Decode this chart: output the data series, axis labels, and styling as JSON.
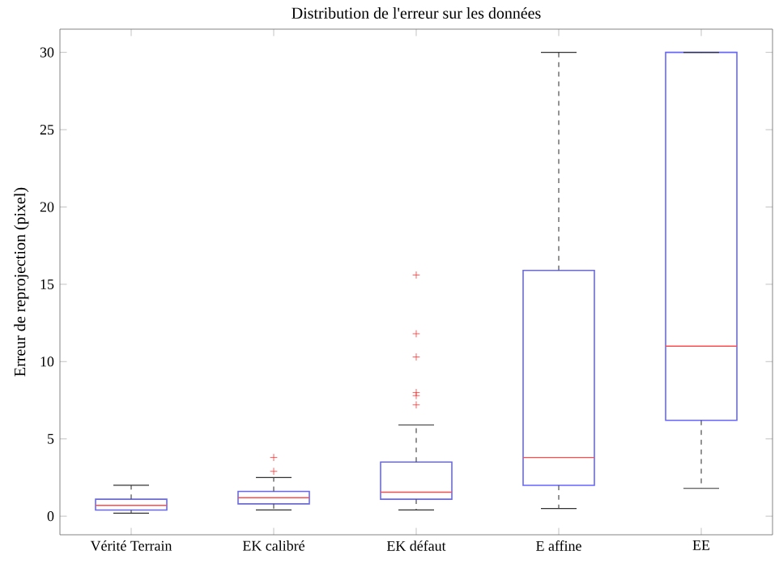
{
  "chart_data": {
    "type": "box",
    "title": "Distribution de l'erreur sur les données",
    "ylabel": "Erreur de reprojection (pixel)",
    "categories": [
      "Vérité Terrain",
      "EK calibré",
      "EK défaut",
      "E affine",
      "EE"
    ],
    "series": [
      {
        "color": "#6666ff",
        "boxes": [
          {
            "low": 0.2,
            "q1": 0.4,
            "median": 0.7,
            "q3": 1.1,
            "high": 2.0
          },
          {
            "low": 0.4,
            "q1": 0.8,
            "median": 1.2,
            "q3": 1.6,
            "high": 2.5,
            "outliers": [
              2.9,
              3.8
            ]
          },
          {
            "low": 0.4,
            "q1": 1.1,
            "median": 1.55,
            "q3": 3.5,
            "high": 5.9,
            "outliers": [
              7.2,
              7.8,
              8.0,
              10.3,
              11.8,
              15.6
            ]
          },
          {
            "low": 0.5,
            "q1": 2.0,
            "median": 3.8,
            "q3": 15.9,
            "high": 30
          },
          {
            "low": 1.8,
            "q1": 6.2,
            "median": 11.0,
            "q3": 30,
            "high": 30
          }
        ]
      }
    ],
    "ylim": [
      -1.2,
      31.5
    ],
    "yticks": [
      0,
      5,
      10,
      15,
      20,
      25,
      30
    ],
    "grid": false
  }
}
